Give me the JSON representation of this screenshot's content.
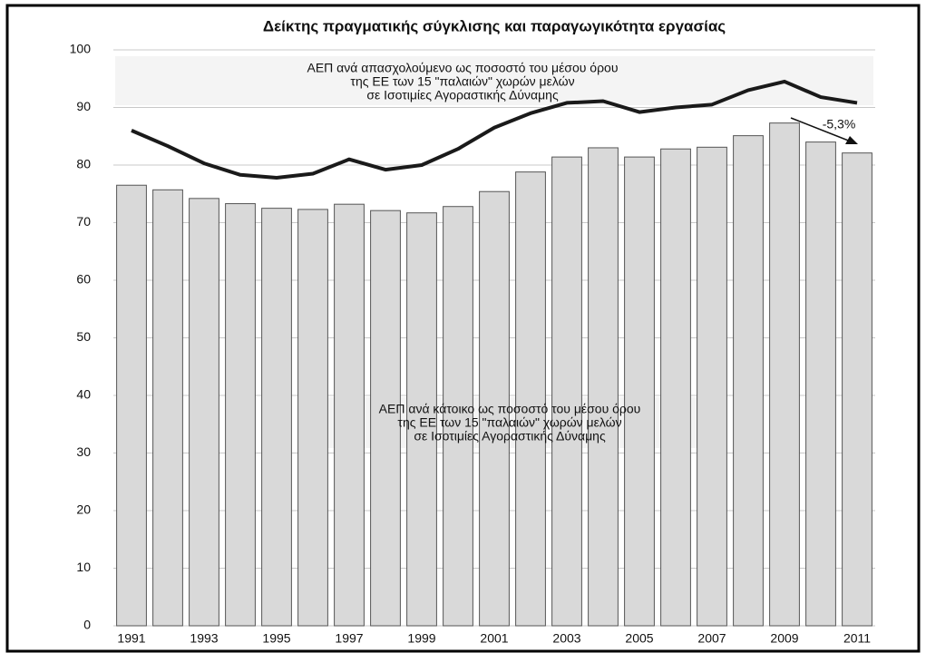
{
  "chart_data": {
    "type": "bar_line",
    "title": "Δείκτης πραγματικής σύγκλισης και παραγωγικότητα εργασίας",
    "categories": [
      "1991",
      null,
      "1993",
      null,
      "1995",
      null,
      "1997",
      null,
      "1999",
      null,
      "2001",
      null,
      "2003",
      null,
      "2005",
      null,
      "2007",
      null,
      "2009",
      null,
      "2011"
    ],
    "series": [
      {
        "type": "bar",
        "color": "#d9d9d9",
        "values": [
          76.5,
          75.7,
          74.2,
          73.3,
          72.5,
          72.3,
          73.2,
          72.1,
          71.7,
          72.8,
          75.4,
          78.8,
          81.4,
          83.0,
          81.4,
          82.8,
          83.1,
          85.1,
          87.3,
          84.0,
          82.1
        ]
      },
      {
        "type": "line",
        "color": "#1a1a1a",
        "values": [
          86.0,
          83.3,
          80.3,
          78.3,
          77.8,
          78.5,
          81.0,
          79.2,
          80.0,
          82.8,
          86.5,
          89.0,
          90.8,
          91.1,
          89.2,
          90.0,
          90.5,
          93.0,
          94.5,
          91.8,
          90.8
        ]
      }
    ],
    "annotations": [
      {
        "lines": [
          "ΑΕΠ ανά απασχολούμενο ως ποσοστό του μέσου όρου",
          "της ΕΕ των 15 \"παλαιών\" χωρών μελών",
          "σε Ισοτιμίες Αγοραστικής Δύναμης"
        ]
      },
      {
        "lines": [
          "ΑΕΠ ανά κάτοικο ως ποσοστό του μέσου όρου",
          "της ΕΕ των 15 \"παλαιών\" χωρών μελών",
          "σε Ισοτιμίες Αγοραστικής Δύναμης"
        ]
      },
      {
        "lines": [
          "-5,3%"
        ]
      }
    ],
    "ylim": [
      0,
      100
    ],
    "yticks": [
      0,
      10,
      20,
      30,
      40,
      50,
      60,
      70,
      80,
      90,
      100
    ],
    "grid": true
  }
}
